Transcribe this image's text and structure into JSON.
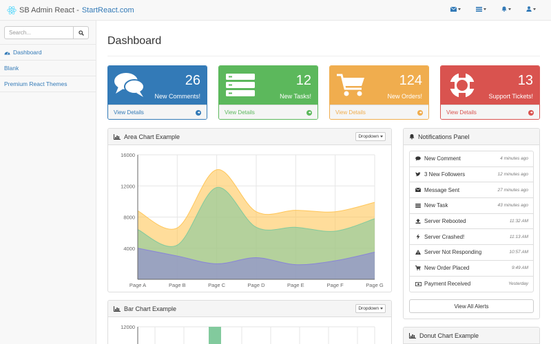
{
  "navbar": {
    "brand_text": "SB Admin React -",
    "brand_link": "StartReact.com",
    "icons": [
      "envelope-icon",
      "tasks-icon",
      "bell-icon",
      "user-icon"
    ]
  },
  "sidebar": {
    "search_placeholder": "Search...",
    "items": [
      {
        "label": "Dashboard",
        "icon": "dashboard-icon"
      },
      {
        "label": "Blank"
      },
      {
        "label": "Premium React Themes"
      }
    ]
  },
  "page": {
    "title": "Dashboard"
  },
  "stats": [
    {
      "count": "26",
      "label": "New Comments!",
      "details": "View Details",
      "icon": "comments-icon",
      "color": "#337ab7"
    },
    {
      "count": "12",
      "label": "New Tasks!",
      "details": "View Details",
      "icon": "tasks-icon",
      "color": "#5cb85c"
    },
    {
      "count": "124",
      "label": "New Orders!",
      "details": "View Details",
      "icon": "shopping-cart-icon",
      "color": "#f0ad4e"
    },
    {
      "count": "13",
      "label": "Support Tickets!",
      "details": "View Details",
      "icon": "support-icon",
      "color": "#d9534f"
    }
  ],
  "area_panel": {
    "title": "Area Chart Example",
    "dropdown": "Dropdown"
  },
  "bar_panel": {
    "title": "Bar Chart Example",
    "dropdown": "Dropdown"
  },
  "notifications": {
    "title": "Notifications Panel",
    "items": [
      {
        "text": "New Comment",
        "time": "4 minutes ago",
        "icon": "comment-icon"
      },
      {
        "text": "3 New Followers",
        "time": "12 minutes ago",
        "icon": "twitter-icon"
      },
      {
        "text": "Message Sent",
        "time": "27 minutes ago",
        "icon": "envelope-icon"
      },
      {
        "text": "New Task",
        "time": "43 minutes ago",
        "icon": "tasks-icon"
      },
      {
        "text": "Server Rebooted",
        "time": "11:32 AM",
        "icon": "upload-icon"
      },
      {
        "text": "Server Crashed!",
        "time": "11:13 AM",
        "icon": "bolt-icon"
      },
      {
        "text": "Server Not Responding",
        "time": "10:57 AM",
        "icon": "warning-icon"
      },
      {
        "text": "New Order Placed",
        "time": "9:49 AM",
        "icon": "shopping-cart-icon"
      },
      {
        "text": "Payment Received",
        "time": "Yesterday",
        "icon": "money-icon"
      }
    ],
    "view_all": "View All Alerts"
  },
  "donut_panel": {
    "title": "Donut Chart Example"
  },
  "chart_data": [
    {
      "type": "area",
      "title": "Area Chart Example",
      "categories": [
        "Page A",
        "Page B",
        "Page C",
        "Page D",
        "Page E",
        "Page F",
        "Page G"
      ],
      "ylim": [
        0,
        16000
      ],
      "yticks": [
        "4000",
        "8000",
        "12000",
        "16000"
      ],
      "stacked": true,
      "series": [
        {
          "values": [
            4000,
            3000,
            2000,
            2780,
            1890,
            2390,
            3490
          ],
          "color": "#8884d8"
        },
        {
          "values": [
            2400,
            1398,
            9800,
            3908,
            4800,
            3800,
            4300
          ],
          "color": "#82ca9d"
        },
        {
          "values": [
            2400,
            2210,
            2290,
            2000,
            2181,
            2500,
            2100
          ],
          "color": "#ffc658"
        }
      ]
    },
    {
      "type": "bar",
      "title": "Bar Chart Example",
      "yticks": [
        "12000"
      ],
      "ylim": [
        0,
        12000
      ],
      "note": "only top portion visible",
      "values": [
        12000
      ],
      "color": "#82ca9d"
    }
  ]
}
